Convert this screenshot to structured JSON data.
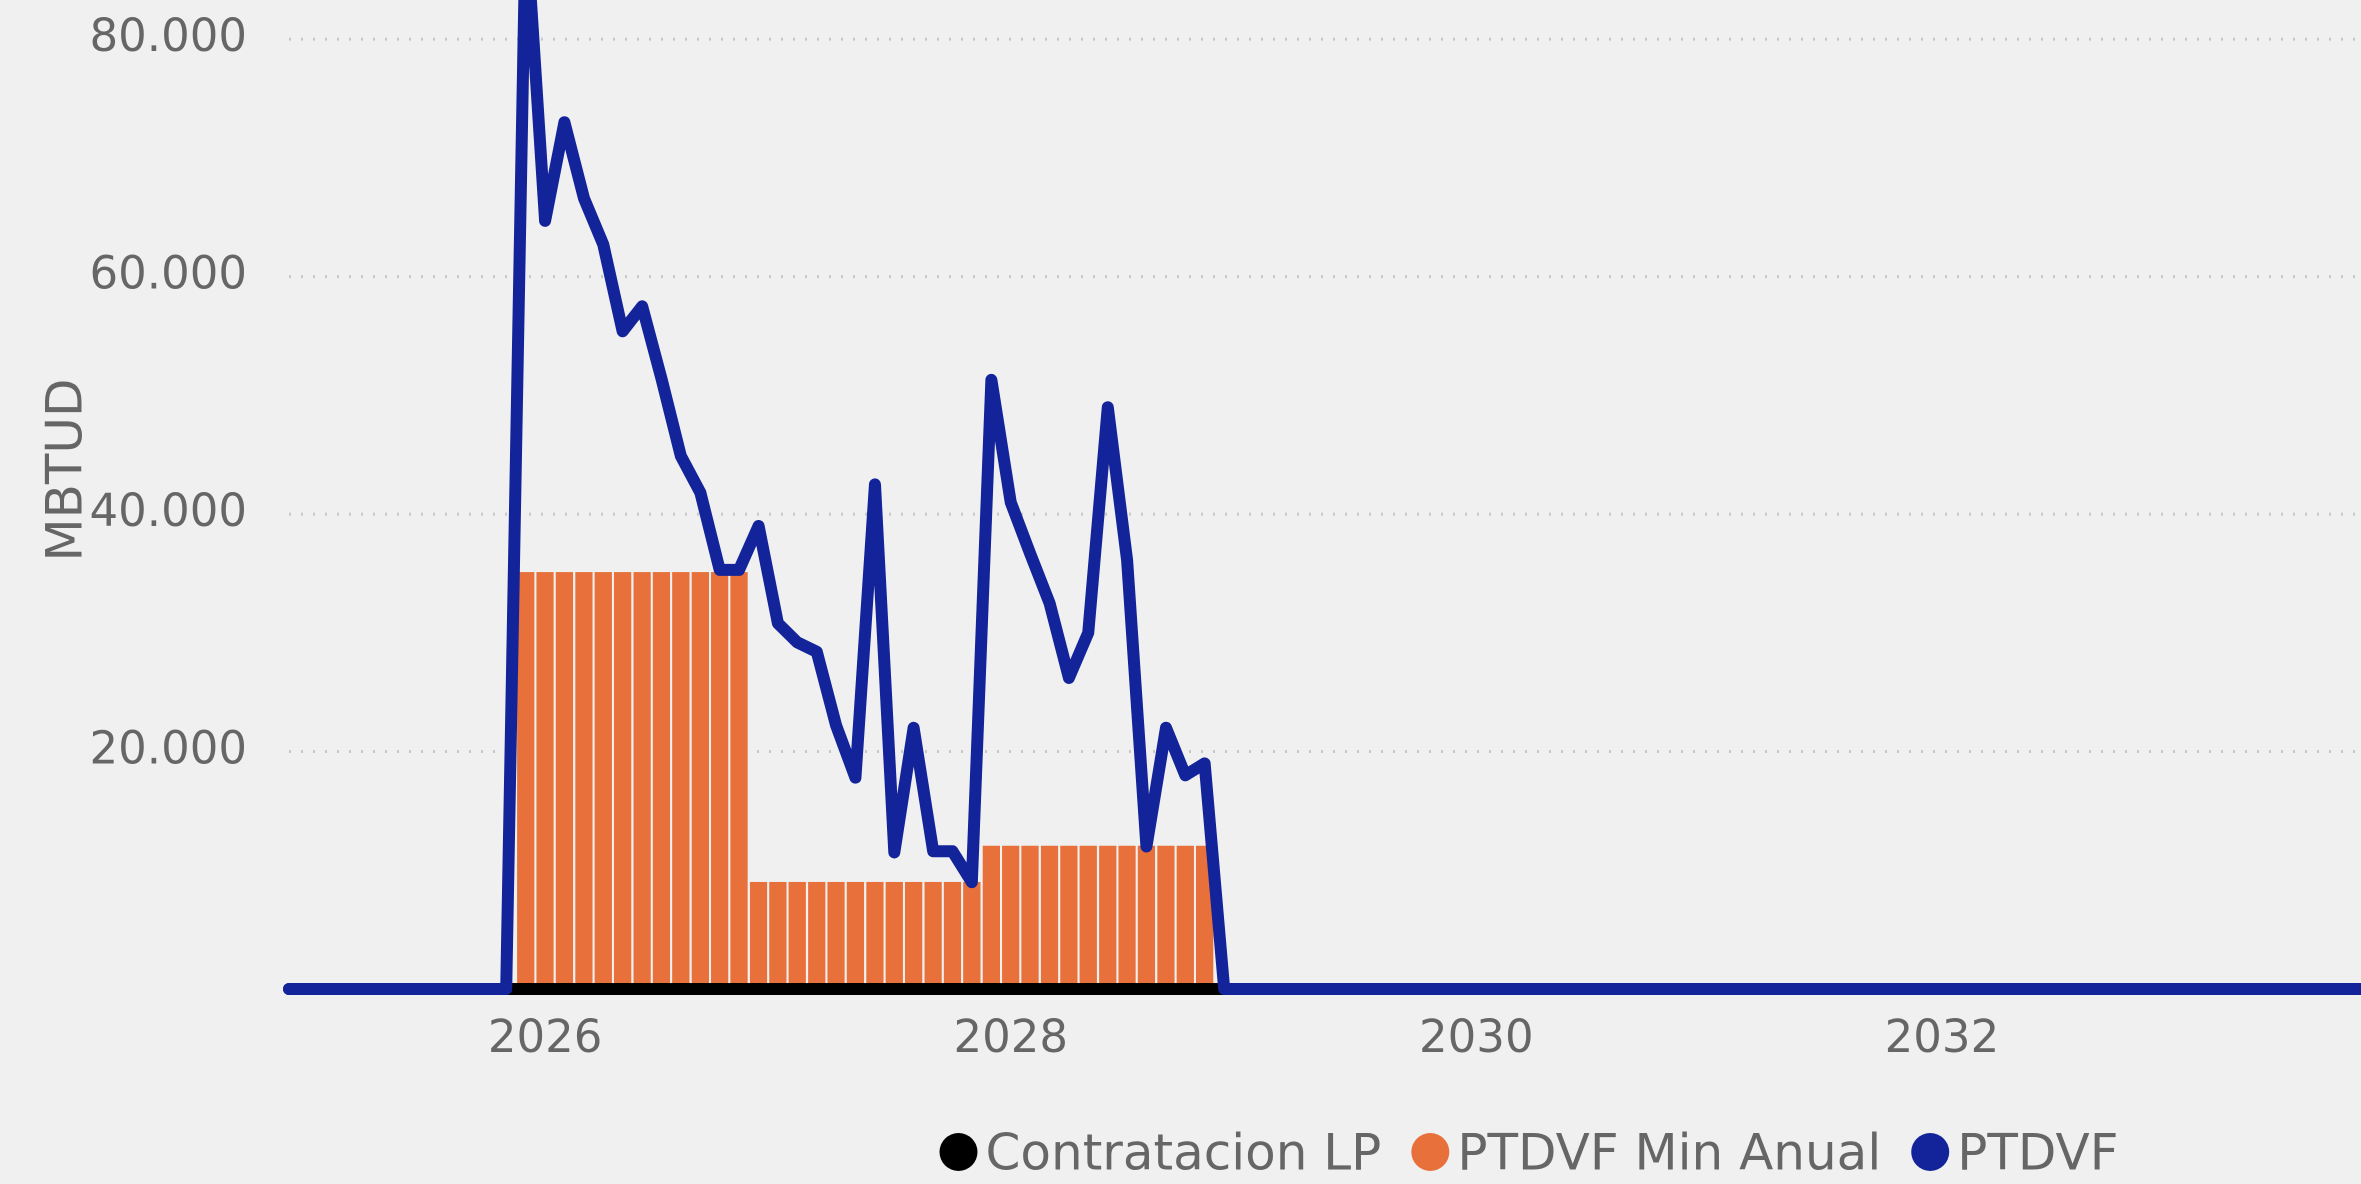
{
  "chart_data": {
    "type": "line",
    "y_label": "MBTUD",
    "x": [
      2024.9,
      2025.833,
      2025.917,
      2026.0,
      2026.083,
      2026.167,
      2026.25,
      2026.333,
      2026.417,
      2026.5,
      2026.583,
      2026.667,
      2026.75,
      2026.833,
      2026.917,
      2027.0,
      2027.083,
      2027.167,
      2027.25,
      2027.333,
      2027.417,
      2027.5,
      2027.583,
      2027.667,
      2027.75,
      2027.833,
      2027.917,
      2028.0,
      2028.083,
      2028.167,
      2028.25,
      2028.333,
      2028.417,
      2028.5,
      2028.583,
      2028.667,
      2028.75,
      2028.833,
      2028.917,
      2033.8
    ],
    "series": [
      {
        "name": "Contratacion LP",
        "color": "#000000",
        "kind": "line",
        "values": [
          0,
          0,
          0,
          0,
          0,
          0,
          0,
          0,
          0,
          0,
          0,
          0,
          0,
          0,
          0,
          0,
          0,
          0,
          0,
          0,
          0,
          0,
          0,
          0,
          0,
          0,
          0,
          0,
          0,
          0,
          0,
          0,
          0,
          0,
          0,
          0,
          0,
          0,
          0,
          0
        ]
      },
      {
        "name": "PTDVF Min Anual",
        "color": "#E8703A",
        "kind": "bar",
        "values": [
          null,
          null,
          35200,
          35200,
          35200,
          35200,
          35200,
          35200,
          35200,
          35200,
          35200,
          35200,
          35200,
          35200,
          9100,
          9100,
          9100,
          9100,
          9100,
          9100,
          9100,
          9100,
          9100,
          9100,
          9100,
          9100,
          12150,
          12150,
          12150,
          12150,
          12150,
          12150,
          12150,
          12150,
          12150,
          12150,
          12150,
          12150,
          null,
          null
        ]
      },
      {
        "name": "PTDVF",
        "color": "#13239A",
        "kind": "line",
        "values": [
          0,
          0,
          90000,
          64700,
          73000,
          66600,
          62700,
          55400,
          57500,
          51400,
          44900,
          41800,
          35300,
          35300,
          39000,
          30800,
          29200,
          28400,
          22200,
          17800,
          42500,
          11500,
          22000,
          11600,
          11600,
          9000,
          51300,
          41000,
          36700,
          32500,
          26200,
          30000,
          49000,
          36100,
          12000,
          22000,
          18000,
          19000,
          0,
          0
        ]
      }
    ],
    "xlim": [
      2024.9,
      2033.8
    ],
    "xticks": [
      2026,
      2028,
      2030,
      2032
    ],
    "ylim": [
      0,
      83300
    ],
    "yticks": [
      {
        "value": 20000,
        "label": "20.000"
      },
      {
        "value": 40000,
        "label": "40.000"
      },
      {
        "value": 60000,
        "label": "60.000"
      },
      {
        "value": 80000,
        "label": "80.000"
      }
    ],
    "grid": true,
    "legend": "bottom"
  }
}
